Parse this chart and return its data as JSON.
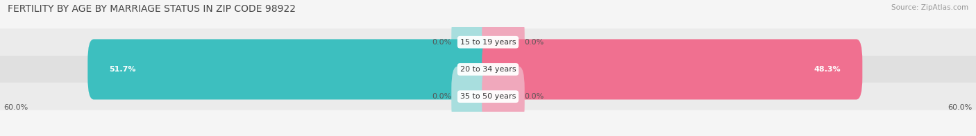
{
  "title": "FERTILITY BY AGE BY MARRIAGE STATUS IN ZIP CODE 98922",
  "source": "Source: ZipAtlas.com",
  "categories": [
    "15 to 19 years",
    "20 to 34 years",
    "35 to 50 years"
  ],
  "married_values": [
    0.0,
    51.7,
    0.0
  ],
  "unmarried_values": [
    0.0,
    48.3,
    0.0
  ],
  "married_color": "#3dbfbf",
  "unmarried_color": "#f07090",
  "married_color_light": "#a8dede",
  "unmarried_color_light": "#f0a8bc",
  "row_bg_colors": [
    "#ebebeb",
    "#e0e0e0",
    "#ebebeb"
  ],
  "row_stripe_color": "#d8d8d8",
  "x_max": 60.0,
  "axis_label_left": "60.0%",
  "axis_label_right": "60.0%",
  "title_fontsize": 10,
  "source_fontsize": 7.5,
  "label_fontsize": 8,
  "category_fontsize": 8,
  "bar_height": 0.62,
  "background_color": "#f5f5f5"
}
